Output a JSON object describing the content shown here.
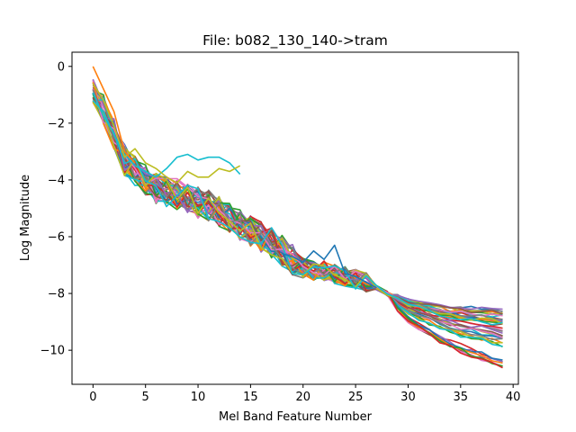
{
  "chart_data": {
    "type": "line",
    "title": "File: b082_130_140->tram",
    "xlabel": "Mel Band Feature Number",
    "ylabel": "Log Magnitude",
    "xlim": [
      -2,
      40.5
    ],
    "ylim": [
      -11.2,
      0.5
    ],
    "xticks": [
      0,
      5,
      10,
      15,
      20,
      25,
      30,
      35,
      40
    ],
    "yticks": [
      0,
      -2,
      -4,
      -6,
      -8,
      -10
    ],
    "grid": false,
    "legend": "none",
    "colors": [
      "#1f77b4",
      "#ff7f0e",
      "#2ca02c",
      "#d62728",
      "#9467bd",
      "#8c564b",
      "#e377c2",
      "#7f7f7f",
      "#bcbd22",
      "#17becf"
    ],
    "series_count": 40,
    "tail_values_at_x39": [
      -8.6,
      -8.7,
      -8.8,
      -8.9,
      -9.0,
      -9.1,
      -9.25,
      -9.35,
      -9.45,
      -9.55,
      -9.65,
      -9.75,
      -9.85,
      -10.35,
      -10.45,
      -10.55,
      -10.6
    ],
    "highlighted_series": [
      {
        "color": "#17becf",
        "values_x0_to_14": [
          -1.2,
          -1.6,
          -2.4,
          -3.1,
          -3.5,
          -3.7,
          -3.9,
          -3.6,
          -3.2,
          -3.1,
          -3.3,
          -3.2,
          -3.2,
          -3.4,
          -3.8
        ]
      },
      {
        "color": "#bcbd22",
        "values_x0_to_14": [
          -0.6,
          -1.2,
          -2.1,
          -3.2,
          -2.9,
          -3.4,
          -3.6,
          -3.9,
          -4.1,
          -3.7,
          -3.9,
          -3.9,
          -3.6,
          -3.7,
          -3.5
        ]
      },
      {
        "color": "#1f77b4",
        "values_x18_to_27": [
          -6.6,
          -6.7,
          -6.9,
          -6.5,
          -6.8,
          -6.3,
          -7.3,
          -7.4,
          -7.6,
          -7.8
        ]
      },
      {
        "color": "#ff7f0e",
        "values_x0_to_4": [
          0.0,
          -0.8,
          -1.6,
          -3.0,
          -3.4
        ]
      }
    ]
  }
}
